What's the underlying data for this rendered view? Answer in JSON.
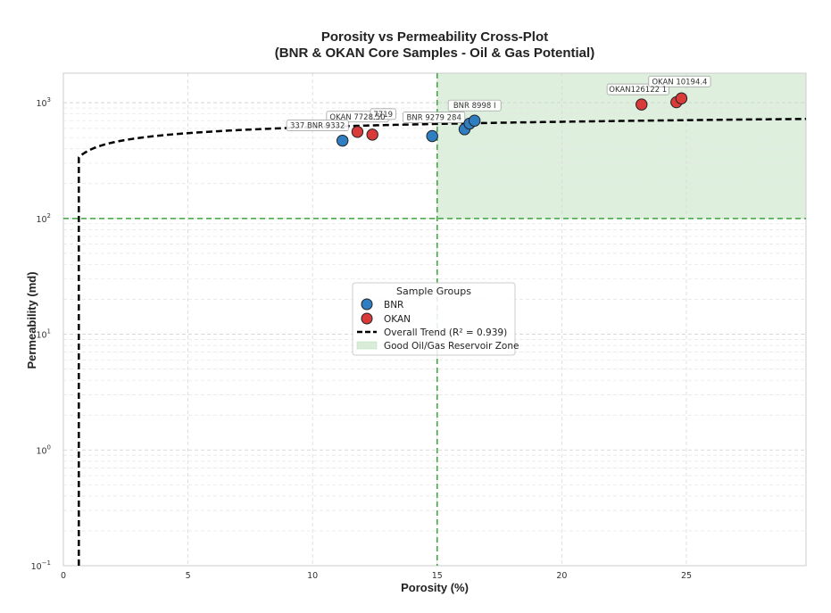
{
  "chart_data": {
    "type": "scatter",
    "title": "Porosity vs Permeability Cross-Plot",
    "subtitle": "(BNR & OKAN Core Samples - Oil & Gas Potential)",
    "xlabel": "Porosity (%)",
    "ylabel": "Permeability (md)",
    "xlim": [
      0,
      29.8
    ],
    "ylim": [
      0.1,
      1800
    ],
    "yscale": "log",
    "x_ticks": [
      0,
      5,
      10,
      15,
      20,
      25
    ],
    "y_ticks": [
      {
        "base": "10",
        "exp": "−1",
        "value": 0.1
      },
      {
        "base": "10",
        "exp": "0",
        "value": 1
      },
      {
        "base": "10",
        "exp": "1",
        "value": 10
      },
      {
        "base": "10",
        "exp": "2",
        "value": 100
      },
      {
        "base": "10",
        "exp": "3",
        "value": 1000
      }
    ],
    "grid": true,
    "legend_title": "Sample Groups",
    "legend_placement": "center",
    "colors": {
      "BNR": "#2f7ec1",
      "OKAN": "#d93a3a",
      "trend": "#000000",
      "threshold": "#3aa53a",
      "zone": "#d8ecd8"
    },
    "series": [
      {
        "name": "BNR",
        "color": "#2f7ec1",
        "points": [
          {
            "x": 11.2,
            "y": 470
          },
          {
            "x": 14.8,
            "y": 515
          },
          {
            "x": 16.1,
            "y": 590
          },
          {
            "x": 16.3,
            "y": 660
          },
          {
            "x": 16.5,
            "y": 700
          }
        ]
      },
      {
        "name": "OKAN",
        "color": "#d93a3a",
        "points": [
          {
            "x": 11.8,
            "y": 560
          },
          {
            "x": 12.4,
            "y": 530
          },
          {
            "x": 23.2,
            "y": 965
          },
          {
            "x": 24.6,
            "y": 1010
          },
          {
            "x": 24.8,
            "y": 1090
          }
        ]
      }
    ],
    "trend": {
      "name": "Overall Trend (R² = 0.939)",
      "style": "dashed",
      "x_start": 0.62,
      "x_end": 29.8,
      "c0": 100,
      "c1": 385
    },
    "thresholds": {
      "porosity": 15,
      "permeability": 100
    },
    "zone": {
      "name": "Good Oil/Gas Reservoir Zone",
      "x": [
        15,
        29.8
      ],
      "y": [
        100,
        1800
      ]
    },
    "annotations": [
      {
        "text": "OKAN 7728.50",
        "x": 11.8,
        "y": 560
      },
      {
        "text": "7719",
        "x": 12.4,
        "y": 530
      },
      {
        "text": "337 BNR 9332",
        "x": 11.2,
        "y": 470
      },
      {
        "text": "BNR 9279 284",
        "x": 14.8,
        "y": 515
      },
      {
        "text": "BNR 8998 I",
        "x": 16.5,
        "y": 700
      },
      {
        "text": "OKAN126122 1",
        "x": 23.2,
        "y": 965
      },
      {
        "text": "OKAN 10194.4",
        "x": 24.8,
        "y": 1090
      }
    ]
  }
}
